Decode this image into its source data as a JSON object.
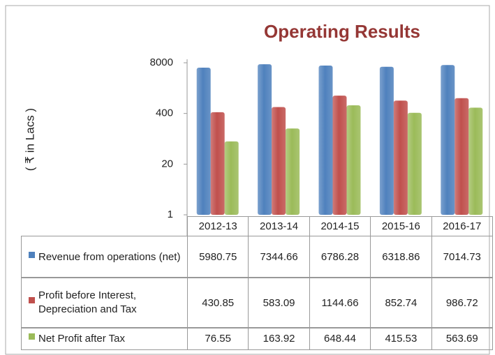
{
  "chart_data": {
    "type": "bar",
    "title": "Operating Results",
    "y_label": "( ₹ in Lacs )",
    "categories": [
      "2012-13",
      "2013-14",
      "2014-15",
      "2015-16",
      "2016-17"
    ],
    "series": [
      {
        "name": "Revenue from operations (net)",
        "color": "#4f81bd",
        "values": [
          5980.75,
          7344.66,
          6786.28,
          6318.86,
          7014.73
        ]
      },
      {
        "name": "Profit before Interest, Depreciation and Tax",
        "color": "#c0504d",
        "values": [
          430.85,
          583.09,
          1144.66,
          852.74,
          986.72
        ]
      },
      {
        "name": "Net Profit after Tax",
        "color": "#9bbb59",
        "values": [
          76.55,
          163.92,
          648.44,
          415.53,
          563.69
        ]
      }
    ],
    "ylim": [
      1,
      8000
    ],
    "yticks": [
      1,
      20,
      400,
      8000
    ],
    "log_scale": true,
    "grid": false
  }
}
